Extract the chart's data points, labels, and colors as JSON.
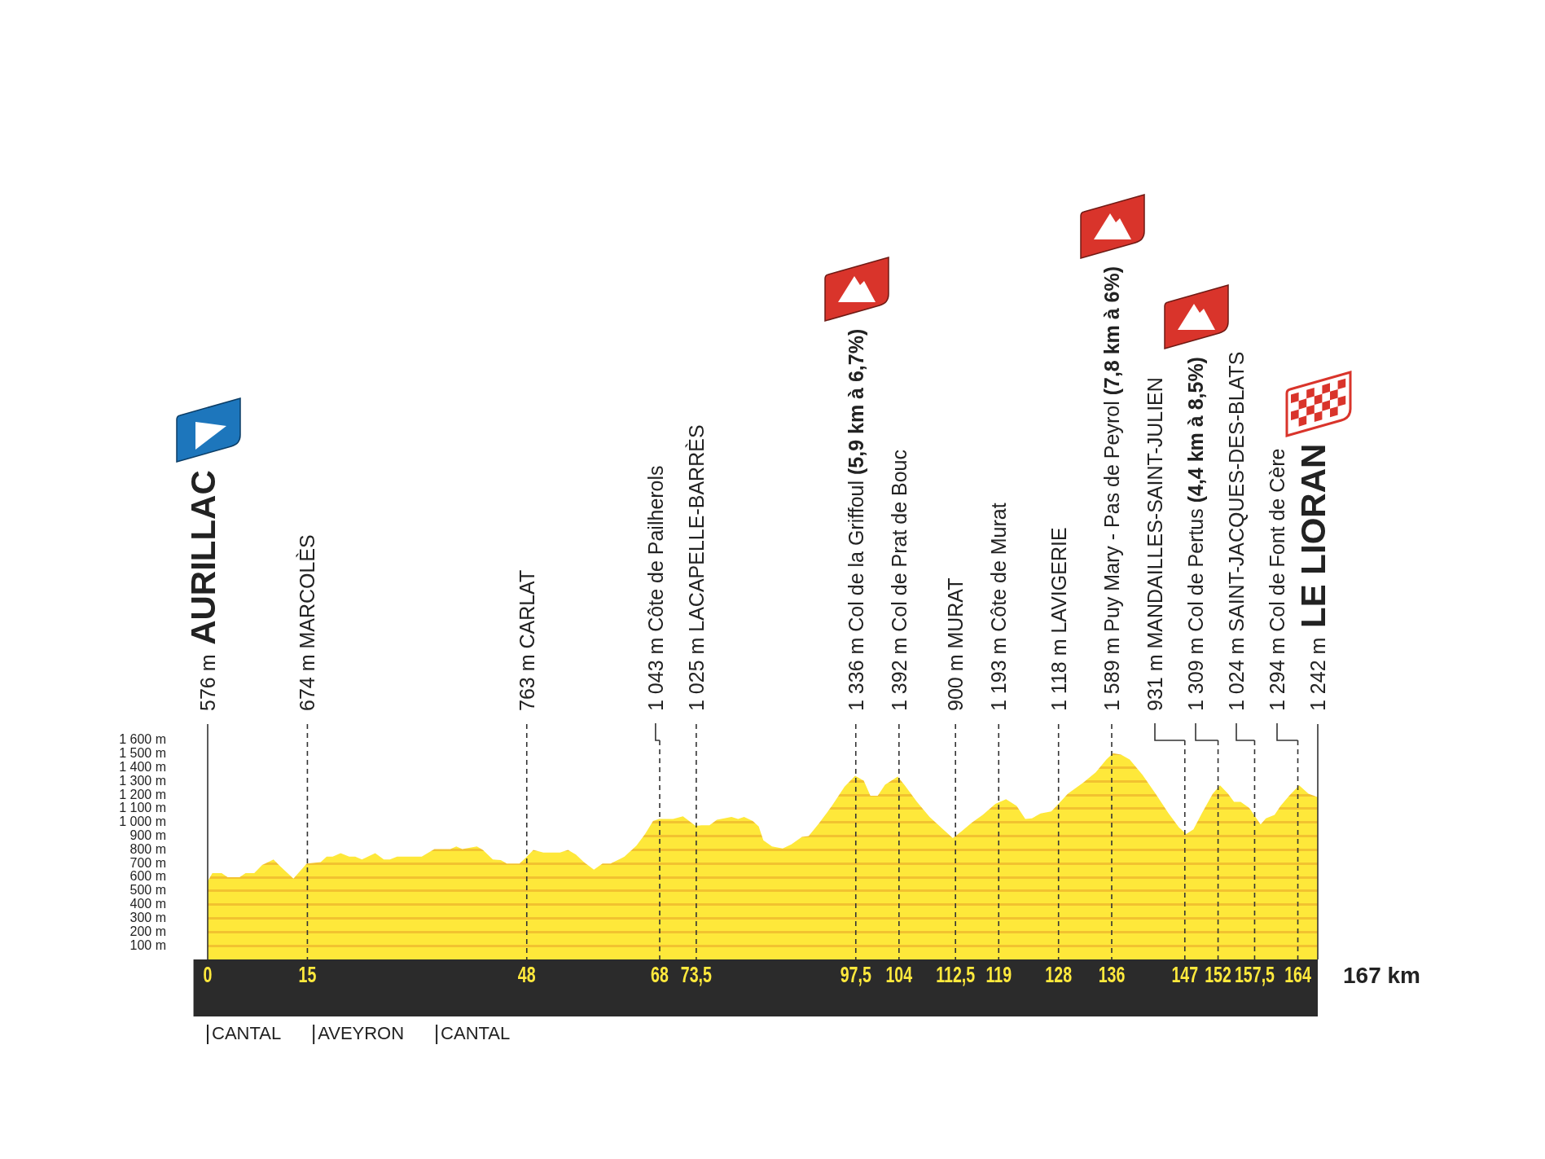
{
  "chart_data": {
    "type": "area",
    "color": "#fee83a",
    "marker": "none",
    "xlabel": "167 km",
    "x": [
      0,
      0.7,
      2.1,
      3.0,
      4.8,
      5.7,
      7.0,
      8.2,
      9.9,
      10.9,
      12.9,
      14.9,
      17.0,
      17.9,
      18.8,
      20.0,
      21.3,
      22.2,
      23.2,
      25.2,
      26.5,
      27.4,
      28.5,
      32.2,
      34.1,
      36.5,
      37.4,
      38.3,
      40.5,
      41.4,
      42.9,
      44.1,
      45.0,
      46.9,
      47.8,
      49.0,
      50.5,
      53.0,
      54.2,
      55.4,
      56.6,
      58.1,
      59.4,
      60.6,
      62.7,
      64.5,
      65.8,
      67.0,
      67.9,
      70.0,
      71.5,
      73.4,
      74.3,
      75.5,
      76.6,
      78.8,
      79.8,
      80.7,
      82.0,
      82.9,
      83.6,
      84.9,
      86.5,
      87.8,
      89.4,
      90.4,
      92.0,
      93.9,
      95.8,
      97.4,
      98.7,
      99.7,
      100.8,
      101.9,
      103.8,
      104.8,
      106.7,
      108.6,
      110.5,
      112.1,
      113.4,
      115.0,
      116.6,
      118.5,
      120.1,
      121.7,
      123.0,
      124.0,
      125.3,
      126.9,
      127.8,
      129.4,
      131.7,
      133.6,
      135.2,
      136.2,
      137.4,
      138.7,
      140.6,
      142.6,
      144.5,
      146.1,
      147.2,
      148.3,
      149.6,
      151.2,
      152.3,
      153.5,
      154.4,
      155.4,
      156.7,
      158.4,
      159.2,
      160.5,
      161.4,
      162.7,
      164.2,
      165.6,
      167
    ],
    "values": [
      570,
      630,
      630,
      600,
      600,
      630,
      630,
      690,
      730,
      680,
      590,
      700,
      710,
      750,
      750,
      775,
      750,
      750,
      730,
      775,
      730,
      730,
      750,
      750,
      805,
      805,
      825,
      805,
      825,
      800,
      730,
      725,
      700,
      700,
      740,
      800,
      780,
      780,
      800,
      765,
      710,
      655,
      700,
      700,
      750,
      830,
      915,
      1010,
      1025,
      1025,
      1045,
      975,
      980,
      980,
      1020,
      1040,
      1025,
      1040,
      1010,
      970,
      870,
      825,
      810,
      840,
      895,
      900,
      995,
      1120,
      1260,
      1340,
      1305,
      1195,
      1195,
      1275,
      1335,
      1275,
      1150,
      1040,
      955,
      885,
      935,
      1000,
      1055,
      1135,
      1170,
      1120,
      1025,
      1030,
      1065,
      1080,
      1125,
      1210,
      1290,
      1365,
      1460,
      1505,
      1495,
      1460,
      1350,
      1210,
      1070,
      965,
      915,
      950,
      1070,
      1210,
      1270,
      1210,
      1150,
      1150,
      1105,
      985,
      1030,
      1055,
      1120,
      1195,
      1270,
      1210,
      1185
    ],
    "xlim": [
      0,
      167
    ],
    "ylim": [
      0,
      1700
    ],
    "xticks": [
      0,
      15,
      48,
      68,
      {
        "value": 73.5,
        "label": "73,5"
      },
      {
        "value": 97.5,
        "label": "97,5"
      },
      104,
      {
        "value": 112.5,
        "label": "112,5"
      },
      119,
      128,
      136,
      147,
      152,
      {
        "value": 157.5,
        "label": "157,5"
      },
      164
    ],
    "yticks": [
      {
        "value": 100,
        "label": "100 m"
      },
      {
        "value": 200,
        "label": "200 m"
      },
      {
        "value": 300,
        "label": "300 m"
      },
      {
        "value": 400,
        "label": "400 m"
      },
      {
        "value": 500,
        "label": "500 m"
      },
      {
        "value": 600,
        "label": "600 m"
      },
      {
        "value": 700,
        "label": "700 m"
      },
      {
        "value": 800,
        "label": "800 m"
      },
      {
        "value": 900,
        "label": "900 m"
      },
      {
        "value": 1000,
        "label": "1 000 m"
      },
      {
        "value": 1100,
        "label": "1 100 m"
      },
      {
        "value": 1200,
        "label": "1 200 m"
      },
      {
        "value": 1300,
        "label": "1 300 m"
      },
      {
        "value": 1400,
        "label": "1 400 m"
      },
      {
        "value": 1500,
        "label": "1 500 m"
      },
      {
        "value": 1600,
        "label": "1 600 m"
      }
    ],
    "ref_lines": [
      {
        "axis": "x",
        "value": 0,
        "label": "576 m AURILLAC",
        "line_style": "solid"
      },
      {
        "axis": "x",
        "value": 15,
        "label": "674 m MARCOLÈS",
        "line_style": "dashed"
      },
      {
        "axis": "x",
        "value": 48,
        "label": "763 m CARLAT",
        "line_style": "dashed"
      },
      {
        "axis": "x",
        "value": 68,
        "label": "1 043 m Côte de Pailherols",
        "line_style": "dashed"
      },
      {
        "axis": "x",
        "value": 73.5,
        "label": "1 025 m LACAPELLE-BARRÈS",
        "line_style": "dashed"
      },
      {
        "axis": "x",
        "value": 97.5,
        "label": "1 336 m Col de la Griffoul (5,9 km à 6,7%)",
        "line_style": "dashed"
      },
      {
        "axis": "x",
        "value": 104,
        "label": "1 392 m Col de Prat de Bouc",
        "line_style": "dashed"
      },
      {
        "axis": "x",
        "value": 112.5,
        "label": "900 m MURAT",
        "line_style": "dashed"
      },
      {
        "axis": "x",
        "value": 119,
        "label": "1 193 m Côte de Murat",
        "line_style": "dashed"
      },
      {
        "axis": "x",
        "value": 128,
        "label": "1 118 m LAVIGERIE",
        "line_style": "dashed"
      },
      {
        "axis": "x",
        "value": 136,
        "label": "1 589 m Puy Mary - Pas de Peyrol (7,8 km à 6%)",
        "line_style": "dashed"
      },
      {
        "axis": "x",
        "value": 147,
        "label": "931 m MANDAILLES-SAINT-JULIEN",
        "line_style": "dashed"
      },
      {
        "axis": "x",
        "value": 152,
        "label": "1 309 m Col de Pertus (4,4 km à 8,5%)",
        "line_style": "dashed"
      },
      {
        "axis": "x",
        "value": 157.5,
        "label": "1 024 m SAINT-JACQUES-DES-BLATS",
        "line_style": "dashed"
      },
      {
        "axis": "x",
        "value": 164,
        "label": "1 294 m Col de Font de Cère",
        "line_style": "dashed"
      },
      {
        "axis": "x",
        "value": 167,
        "label": "1 242 m LE LIORAN",
        "line_style": "solid"
      }
    ],
    "annotations": [
      "CANTAL",
      "AVEYRON",
      "CANTAL"
    ]
  }
}
